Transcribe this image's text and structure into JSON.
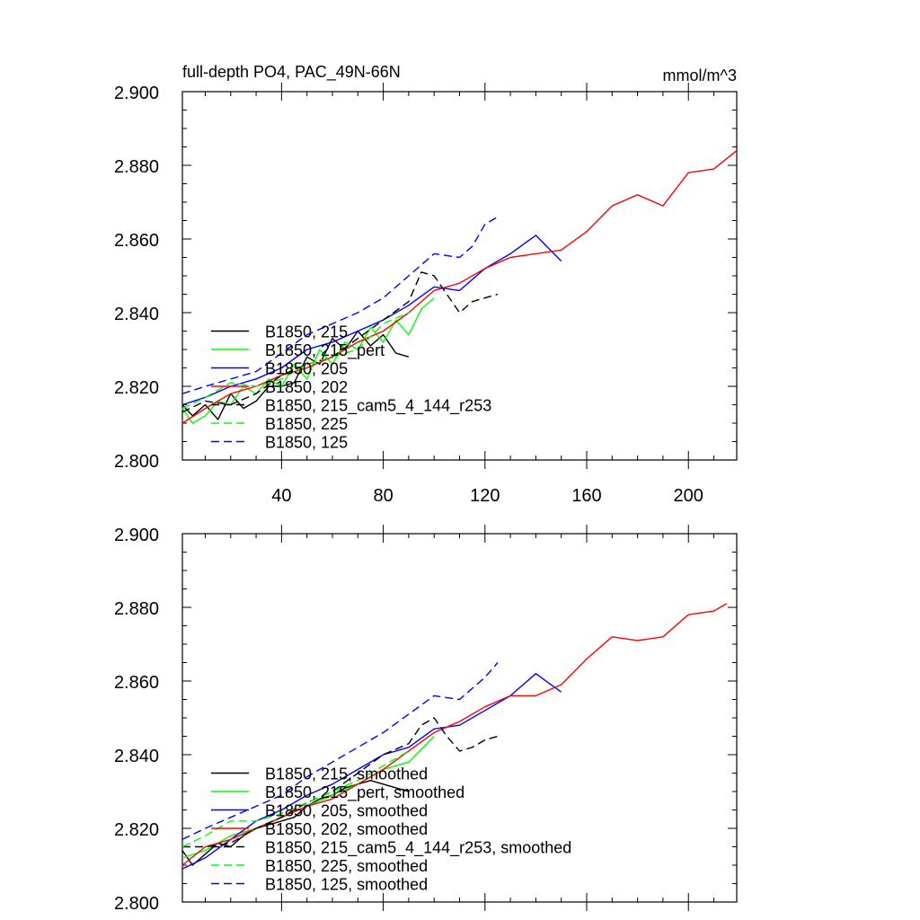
{
  "chart_data": [
    {
      "type": "line",
      "title": "full-depth PO4, PAC_49N-66N",
      "units": "mmol/m^3",
      "xlim": [
        1,
        219
      ],
      "ylim": [
        2.8,
        2.9
      ],
      "x_ticks": [
        40,
        80,
        120,
        160,
        200
      ],
      "y_ticks": [
        2.8,
        2.82,
        2.84,
        2.86,
        2.88,
        2.9
      ],
      "y_tick_labels": [
        "2.800",
        "2.820",
        "2.840",
        "2.860",
        "2.880",
        "2.900"
      ],
      "x_tick_labels": [
        "40",
        "80",
        "120",
        "160",
        "200"
      ],
      "legend_position": "lower-left",
      "series": [
        {
          "name": "B1850, 215",
          "color": "#000000",
          "dash": "solid",
          "x": [
            1,
            5,
            10,
            15,
            20,
            25,
            30,
            35,
            40,
            45,
            50,
            55,
            60,
            65,
            70,
            75,
            80,
            85,
            90
          ],
          "y": [
            2.815,
            2.812,
            2.815,
            2.811,
            2.818,
            2.814,
            2.816,
            2.82,
            2.82,
            2.821,
            2.828,
            2.826,
            2.833,
            2.83,
            2.835,
            2.831,
            2.834,
            2.829,
            2.828
          ]
        },
        {
          "name": "B1850, 215_pert",
          "color": "#00ff00",
          "dash": "solid",
          "x": [
            1,
            5,
            10,
            15,
            20,
            25,
            30,
            35,
            40,
            45,
            50,
            55,
            60,
            65,
            70,
            75,
            80,
            85,
            90,
            95,
            100
          ],
          "y": [
            2.814,
            2.81,
            2.812,
            2.816,
            2.815,
            2.82,
            2.818,
            2.822,
            2.82,
            2.826,
            2.822,
            2.83,
            2.826,
            2.832,
            2.83,
            2.836,
            2.832,
            2.838,
            2.834,
            2.841,
            2.844
          ]
        },
        {
          "name": "B1850, 205",
          "color": "#0000ff",
          "dash": "solid",
          "x": [
            1,
            10,
            20,
            30,
            40,
            50,
            60,
            70,
            80,
            90,
            100,
            110,
            120,
            130,
            140,
            150
          ],
          "y": [
            2.815,
            2.817,
            2.82,
            2.822,
            2.825,
            2.83,
            2.832,
            2.835,
            2.838,
            2.842,
            2.847,
            2.846,
            2.852,
            2.856,
            2.861,
            2.854
          ]
        },
        {
          "name": "B1850, 202",
          "color": "#ff0000",
          "dash": "solid",
          "x": [
            1,
            10,
            20,
            30,
            40,
            50,
            60,
            70,
            80,
            90,
            100,
            110,
            120,
            130,
            140,
            150,
            160,
            170,
            180,
            190,
            200,
            210,
            219
          ],
          "y": [
            2.81,
            2.814,
            2.818,
            2.82,
            2.823,
            2.825,
            2.828,
            2.832,
            2.835,
            2.84,
            2.846,
            2.848,
            2.852,
            2.855,
            2.856,
            2.857,
            2.862,
            2.869,
            2.872,
            2.869,
            2.878,
            2.879,
            2.884
          ]
        },
        {
          "name": "B1850, 215_cam5_4_144_r253",
          "color": "#000000",
          "dash": "dashed",
          "x": [
            1,
            10,
            20,
            30,
            40,
            50,
            60,
            70,
            80,
            90,
            95,
            100,
            105,
            110,
            115,
            120,
            125
          ],
          "y": [
            2.813,
            2.816,
            2.815,
            2.818,
            2.823,
            2.826,
            2.828,
            2.833,
            2.838,
            2.843,
            2.851,
            2.85,
            2.845,
            2.84,
            2.843,
            2.844,
            2.845
          ]
        },
        {
          "name": "B1850, 225",
          "color": "#00ff00",
          "dash": "dashed",
          "x": [
            1,
            10,
            20,
            30,
            40,
            50,
            60,
            70,
            80,
            90
          ],
          "y": [
            2.814,
            2.817,
            2.821,
            2.82,
            2.822,
            2.826,
            2.828,
            2.83,
            2.837,
            2.84
          ]
        },
        {
          "name": "B1850, 125",
          "color": "#0000ff",
          "dash": "dashed",
          "x": [
            1,
            10,
            20,
            30,
            40,
            50,
            60,
            70,
            80,
            90,
            100,
            110,
            115,
            120,
            125
          ],
          "y": [
            2.818,
            2.82,
            2.822,
            2.824,
            2.829,
            2.834,
            2.837,
            2.84,
            2.844,
            2.85,
            2.856,
            2.855,
            2.858,
            2.864,
            2.866
          ]
        }
      ]
    },
    {
      "type": "line",
      "title": "",
      "units": "",
      "xlim": [
        1,
        219
      ],
      "ylim": [
        2.8,
        2.9
      ],
      "x_ticks": [
        40,
        80,
        120,
        160,
        200
      ],
      "y_ticks": [
        2.8,
        2.82,
        2.84,
        2.86,
        2.88,
        2.9
      ],
      "y_tick_labels": [
        "2.800",
        "2.820",
        "2.840",
        "2.860",
        "2.880",
        "2.900"
      ],
      "x_tick_labels": [],
      "legend_position": "lower-left",
      "series": [
        {
          "name": "B1850, 215, smoothed",
          "color": "#000000",
          "dash": "solid",
          "x": [
            1,
            5,
            10,
            15,
            20,
            25,
            30,
            35,
            40,
            45,
            50,
            55,
            60,
            65,
            70,
            75,
            80,
            85,
            90
          ],
          "y": [
            2.814,
            2.81,
            2.813,
            2.816,
            2.815,
            2.818,
            2.82,
            2.821,
            2.822,
            2.823,
            2.826,
            2.828,
            2.829,
            2.831,
            2.832,
            2.833,
            2.832,
            2.831,
            2.83
          ]
        },
        {
          "name": "B1850, 215_pert, smoothed",
          "color": "#00ff00",
          "dash": "solid",
          "x": [
            1,
            10,
            20,
            30,
            40,
            50,
            60,
            70,
            80,
            90,
            100
          ],
          "y": [
            2.812,
            2.814,
            2.818,
            2.82,
            2.823,
            2.826,
            2.829,
            2.832,
            2.836,
            2.838,
            2.845
          ]
        },
        {
          "name": "B1850, 205, smoothed",
          "color": "#0000ff",
          "dash": "solid",
          "x": [
            1,
            10,
            20,
            30,
            40,
            50,
            60,
            70,
            80,
            90,
            100,
            110,
            120,
            130,
            140,
            150
          ],
          "y": [
            2.809,
            2.812,
            2.817,
            2.822,
            2.825,
            2.829,
            2.832,
            2.836,
            2.84,
            2.842,
            2.847,
            2.848,
            2.852,
            2.856,
            2.862,
            2.857
          ]
        },
        {
          "name": "B1850, 202, smoothed",
          "color": "#ff0000",
          "dash": "solid",
          "x": [
            1,
            10,
            20,
            30,
            40,
            50,
            60,
            70,
            80,
            90,
            100,
            110,
            120,
            130,
            140,
            150,
            160,
            170,
            180,
            190,
            200,
            210,
            215
          ],
          "y": [
            2.81,
            2.815,
            2.817,
            2.82,
            2.823,
            2.826,
            2.828,
            2.832,
            2.836,
            2.841,
            2.846,
            2.849,
            2.853,
            2.856,
            2.856,
            2.859,
            2.866,
            2.872,
            2.871,
            2.872,
            2.878,
            2.879,
            2.881
          ]
        },
        {
          "name": "B1850, 215_cam5_4_144_r253, smoothed",
          "color": "#000000",
          "dash": "dashed",
          "x": [
            1,
            10,
            20,
            30,
            40,
            50,
            60,
            70,
            80,
            90,
            95,
            100,
            105,
            110,
            115,
            120,
            125
          ],
          "y": [
            2.815,
            2.815,
            2.816,
            2.82,
            2.823,
            2.827,
            2.83,
            2.835,
            2.84,
            2.843,
            2.848,
            2.85,
            2.845,
            2.841,
            2.842,
            2.844,
            2.845
          ]
        },
        {
          "name": "B1850, 225, smoothed",
          "color": "#00ff00",
          "dash": "dashed",
          "x": [
            1,
            10,
            20,
            30,
            40,
            50,
            60,
            70,
            80,
            90
          ],
          "y": [
            2.815,
            2.818,
            2.822,
            2.822,
            2.824,
            2.827,
            2.83,
            2.833,
            2.837,
            2.841
          ]
        },
        {
          "name": "B1850, 125, smoothed",
          "color": "#0000ff",
          "dash": "dashed",
          "x": [
            1,
            10,
            20,
            30,
            40,
            50,
            60,
            70,
            80,
            90,
            100,
            110,
            120,
            125
          ],
          "y": [
            2.817,
            2.82,
            2.823,
            2.826,
            2.829,
            2.834,
            2.838,
            2.842,
            2.846,
            2.851,
            2.856,
            2.855,
            2.861,
            2.865
          ]
        }
      ]
    }
  ]
}
